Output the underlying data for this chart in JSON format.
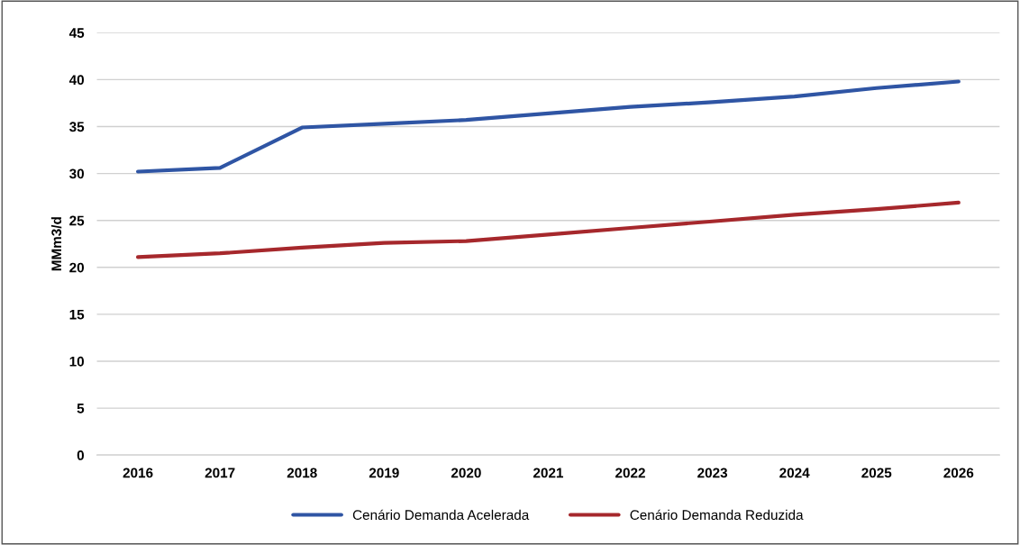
{
  "chart_data": {
    "type": "line",
    "ylabel": "MMm3/d",
    "categories": [
      "2016",
      "2017",
      "2018",
      "2019",
      "2020",
      "2021",
      "2022",
      "2023",
      "2024",
      "2025",
      "2026"
    ],
    "series": [
      {
        "name": "Cenário Demanda Acelerada",
        "color": "#2f55a4",
        "values": [
          30.2,
          30.6,
          34.9,
          35.3,
          35.7,
          36.4,
          37.1,
          37.6,
          38.2,
          39.1,
          39.8
        ]
      },
      {
        "name": "Cenário Demanda Reduzida",
        "color": "#a6282c",
        "values": [
          21.1,
          21.5,
          22.1,
          22.6,
          22.8,
          23.5,
          24.2,
          24.9,
          25.6,
          26.2,
          26.9
        ]
      }
    ],
    "ylim": [
      0,
      45
    ],
    "yticks": [
      0,
      5,
      10,
      15,
      20,
      25,
      30,
      35,
      40,
      45
    ],
    "grid": "y",
    "legend": "bottom",
    "marker": "none",
    "line_style": "solid"
  }
}
